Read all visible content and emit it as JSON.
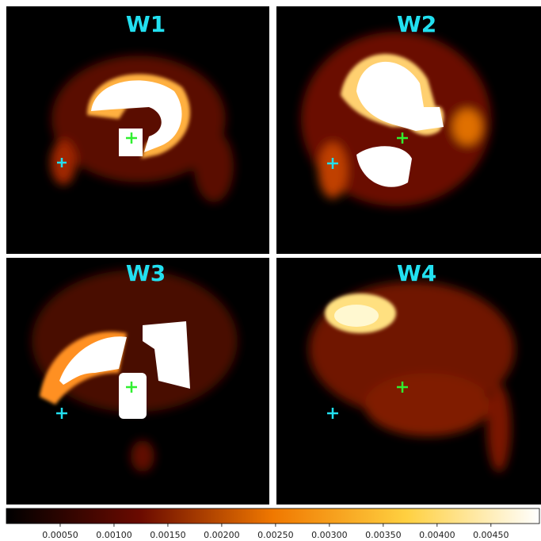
{
  "panels": [
    {
      "title": "W1"
    },
    {
      "title": "W2"
    },
    {
      "title": "W3"
    },
    {
      "title": "W4"
    }
  ],
  "colorbar": {
    "clim": [
      0,
      0.00495
    ],
    "ticks": [
      {
        "value": 0.0005,
        "label": "0.00050"
      },
      {
        "value": 0.001,
        "label": "0.00100"
      },
      {
        "value": 0.0015,
        "label": "0.00150"
      },
      {
        "value": 0.002,
        "label": "0.00200"
      },
      {
        "value": 0.0025,
        "label": "0.00250"
      },
      {
        "value": 0.003,
        "label": "0.00300"
      },
      {
        "value": 0.0035,
        "label": "0.00350"
      },
      {
        "value": 0.004,
        "label": "0.00400"
      },
      {
        "value": 0.0045,
        "label": "0.00450"
      }
    ]
  }
}
